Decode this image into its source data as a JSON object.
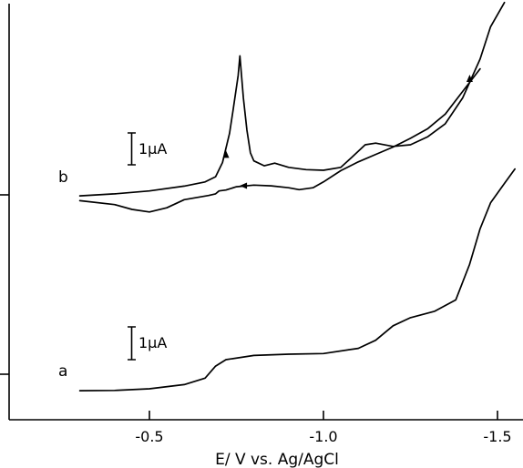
{
  "chart_data": {
    "type": "line",
    "title": "",
    "xlabel": "E/ V vs. Ag/AgCl",
    "ylabel": "",
    "x_reversed": true,
    "xlim": [
      -0.15,
      -1.6
    ],
    "xticks": [
      -0.5,
      -1.0,
      -1.5
    ],
    "xtick_labels": [
      "-0.5",
      "-1.0",
      "-1.5"
    ],
    "grid": false,
    "series": [
      {
        "name": "a",
        "label": "a",
        "scale_label": "1μA",
        "points": [
          [
            -0.3,
            -0.51
          ],
          [
            -0.4,
            -0.5
          ],
          [
            -0.5,
            -0.45
          ],
          [
            -0.6,
            -0.32
          ],
          [
            -0.66,
            -0.12
          ],
          [
            -0.69,
            0.25
          ],
          [
            -0.72,
            0.45
          ],
          [
            -0.8,
            0.58
          ],
          [
            -0.9,
            0.62
          ],
          [
            -1.0,
            0.64
          ],
          [
            -1.1,
            0.8
          ],
          [
            -1.15,
            1.05
          ],
          [
            -1.2,
            1.5
          ],
          [
            -1.25,
            1.75
          ],
          [
            -1.32,
            1.95
          ],
          [
            -1.38,
            2.3
          ],
          [
            -1.42,
            3.4
          ],
          [
            -1.45,
            4.5
          ],
          [
            -1.48,
            5.3
          ],
          [
            -1.52,
            5.9
          ],
          [
            -1.55,
            6.35
          ]
        ]
      },
      {
        "name": "b",
        "label": "b",
        "scale_label": "1μA",
        "cathodic_points": [
          [
            -0.3,
            -0.03
          ],
          [
            -0.4,
            0.03
          ],
          [
            -0.5,
            0.12
          ],
          [
            -0.6,
            0.27
          ],
          [
            -0.66,
            0.4
          ],
          [
            -0.69,
            0.56
          ],
          [
            -0.71,
            1.0
          ],
          [
            -0.73,
            1.9
          ],
          [
            -0.74,
            2.6
          ],
          [
            -0.755,
            3.7
          ],
          [
            -0.76,
            4.3
          ],
          [
            -0.77,
            3.0
          ],
          [
            -0.78,
            2.0
          ],
          [
            -0.79,
            1.3
          ],
          [
            -0.8,
            1.05
          ],
          [
            -0.83,
            0.9
          ],
          [
            -0.86,
            0.98
          ],
          [
            -0.9,
            0.85
          ],
          [
            -0.95,
            0.78
          ],
          [
            -1.0,
            0.76
          ],
          [
            -1.05,
            0.85
          ],
          [
            -1.08,
            1.15
          ],
          [
            -1.12,
            1.55
          ],
          [
            -1.15,
            1.6
          ],
          [
            -1.2,
            1.5
          ],
          [
            -1.25,
            1.55
          ],
          [
            -1.3,
            1.8
          ],
          [
            -1.35,
            2.2
          ],
          [
            -1.4,
            3.0
          ],
          [
            -1.45,
            4.2
          ],
          [
            -1.48,
            5.2
          ],
          [
            -1.52,
            5.95
          ]
        ],
        "anodic_points": [
          [
            -1.45,
            3.9
          ],
          [
            -1.4,
            3.2
          ],
          [
            -1.35,
            2.5
          ],
          [
            -1.3,
            2.05
          ],
          [
            -1.25,
            1.75
          ],
          [
            -1.2,
            1.48
          ],
          [
            -1.15,
            1.25
          ],
          [
            -1.1,
            1.02
          ],
          [
            -1.05,
            0.75
          ],
          [
            -1.0,
            0.4
          ],
          [
            -0.97,
            0.22
          ],
          [
            -0.93,
            0.16
          ],
          [
            -0.9,
            0.22
          ],
          [
            -0.85,
            0.28
          ],
          [
            -0.8,
            0.3
          ],
          [
            -0.75,
            0.25
          ],
          [
            -0.72,
            0.15
          ],
          [
            -0.7,
            0.12
          ],
          [
            -0.69,
            0.03
          ],
          [
            -0.67,
            -0.02
          ],
          [
            -0.6,
            -0.15
          ],
          [
            -0.55,
            -0.4
          ],
          [
            -0.5,
            -0.53
          ],
          [
            -0.45,
            -0.45
          ],
          [
            -0.4,
            -0.3
          ],
          [
            -0.3,
            -0.18
          ]
        ]
      }
    ],
    "annotations": [
      "1μA",
      "1μA",
      "a",
      "b"
    ]
  }
}
